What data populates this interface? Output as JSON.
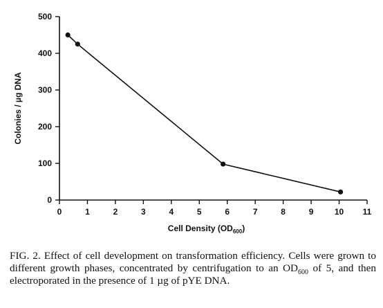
{
  "chart_data": {
    "type": "line",
    "title": "",
    "xlabel": "Cell Density (OD",
    "xlabel_sub": "600",
    "xlabel_close": ")",
    "ylabel": "Colonies / µg DNA",
    "xlim": [
      0,
      11
    ],
    "ylim": [
      0,
      500
    ],
    "xticks": [
      0,
      1,
      2,
      3,
      4,
      5,
      6,
      7,
      8,
      9,
      10,
      11
    ],
    "yticks": [
      0,
      100,
      200,
      300,
      400,
      500
    ],
    "grid": false,
    "x": [
      0.3,
      0.65,
      5.85,
      10.05
    ],
    "y": [
      450,
      425,
      98,
      22
    ]
  },
  "caption": {
    "part1": "FIG. 2. Effect of cell development on transformation efficiency. Cells were grown to different growth phases, concentrated by centrifugation to an OD",
    "sub": "600",
    "part2": " of 5, and then electroporated in the presence of 1 µg of pYE DNA."
  }
}
